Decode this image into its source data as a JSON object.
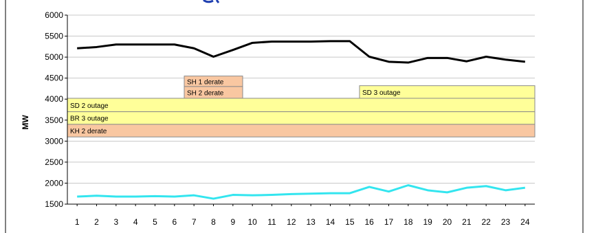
{
  "chart_data": {
    "type": "line",
    "title": "",
    "xlabel": "",
    "ylabel": "MW",
    "x": [
      1,
      2,
      3,
      4,
      5,
      6,
      7,
      8,
      9,
      10,
      11,
      12,
      13,
      14,
      15,
      16,
      17,
      18,
      19,
      20,
      21,
      22,
      23,
      24
    ],
    "ylim": [
      1500,
      6000
    ],
    "yticks": [
      1500,
      2000,
      2500,
      3000,
      3500,
      4000,
      4500,
      5000,
      5500,
      6000
    ],
    "grid": true,
    "legend": "none",
    "series": [
      {
        "name": "",
        "color": "#000000",
        "values": [
          5210,
          5240,
          5300,
          5300,
          5300,
          5300,
          5210,
          5010,
          5170,
          5340,
          5370,
          5370,
          5370,
          5380,
          5380,
          5010,
          4890,
          4870,
          4980,
          4980,
          4900,
          5010,
          4940,
          4890
        ]
      },
      {
        "name": "",
        "color": "#33e5ef",
        "values": [
          1680,
          1700,
          1680,
          1680,
          1690,
          1680,
          1710,
          1630,
          1720,
          1710,
          1720,
          1740,
          1750,
          1760,
          1760,
          1910,
          1800,
          1950,
          1830,
          1780,
          1890,
          1930,
          1830,
          1890
        ]
      }
    ],
    "outage_boxes": [
      {
        "label": "SH 1 derate",
        "start": 6.5,
        "end": 9.5,
        "low": 4300,
        "high": 4550,
        "color": "#f9c7a1"
      },
      {
        "label": "SH 2 derate",
        "start": 6.5,
        "end": 9.5,
        "low": 4020,
        "high": 4300,
        "color": "#f9c7a1"
      },
      {
        "label": "SD 3 outage",
        "start": 15.5,
        "end": 24.5,
        "low": 4020,
        "high": 4320,
        "color": "#ffff99"
      },
      {
        "label": "SD 2 outage",
        "start": 0.5,
        "end": 24.5,
        "low": 3700,
        "high": 4020,
        "color": "#ffff99"
      },
      {
        "label": "BR 3 outage",
        "start": 0.5,
        "end": 24.5,
        "low": 3400,
        "high": 3700,
        "color": "#ffff99"
      },
      {
        "label": "KH 2 derate",
        "start": 0.5,
        "end": 24.5,
        "low": 3100,
        "high": 3400,
        "color": "#f9c7a1"
      }
    ],
    "box_border": "#8a8a8a",
    "grid_color": "#c8c8c8"
  }
}
